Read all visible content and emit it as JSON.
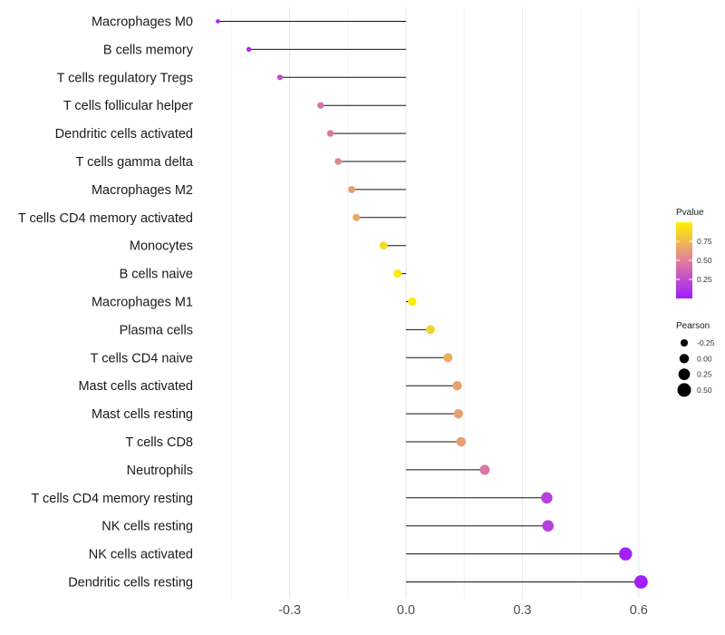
{
  "chart_data": {
    "type": "lollipop",
    "orientation": "horizontal",
    "xlim": [
      -0.45,
      0.62
    ],
    "xticks": [
      -0.3,
      0.0,
      0.3,
      0.6
    ],
    "xtick_labels": [
      "-0.3",
      "0.0",
      "0.3",
      "0.6"
    ],
    "minor_xticks": [
      -0.45,
      -0.15,
      0.15,
      0.45
    ],
    "grid": true,
    "xlabel": "",
    "ylabel": "",
    "points": [
      {
        "category": "Macrophages M0",
        "value": -0.485,
        "pvalue": 0.05
      },
      {
        "category": "B cells memory",
        "value": -0.405,
        "pvalue": 0.1
      },
      {
        "category": "T cells regulatory  Tregs",
        "value": -0.325,
        "pvalue": 0.25
      },
      {
        "category": "T cells follicular helper",
        "value": -0.22,
        "pvalue": 0.42
      },
      {
        "category": "Dendritic cells activated",
        "value": -0.195,
        "pvalue": 0.46
      },
      {
        "category": "T cells gamma delta",
        "value": -0.175,
        "pvalue": 0.52
      },
      {
        "category": "Macrophages M2",
        "value": -0.14,
        "pvalue": 0.62
      },
      {
        "category": "T cells CD4 memory activated",
        "value": -0.128,
        "pvalue": 0.68
      },
      {
        "category": "Monocytes",
        "value": -0.058,
        "pvalue": 0.9
      },
      {
        "category": "B cells naive",
        "value": -0.022,
        "pvalue": 0.97
      },
      {
        "category": "Macrophages M1",
        "value": 0.016,
        "pvalue": 0.98
      },
      {
        "category": "Plasma cells",
        "value": 0.063,
        "pvalue": 0.86
      },
      {
        "category": "T cells CD4 naive",
        "value": 0.108,
        "pvalue": 0.7
      },
      {
        "category": "Mast cells activated",
        "value": 0.132,
        "pvalue": 0.65
      },
      {
        "category": "Mast cells resting",
        "value": 0.135,
        "pvalue": 0.64
      },
      {
        "category": "T cells CD8",
        "value": 0.142,
        "pvalue": 0.63
      },
      {
        "category": "Neutrophils",
        "value": 0.203,
        "pvalue": 0.45
      },
      {
        "category": "T cells CD4 memory resting",
        "value": 0.363,
        "pvalue": 0.18
      },
      {
        "category": "NK cells resting",
        "value": 0.366,
        "pvalue": 0.17
      },
      {
        "category": "NK cells activated",
        "value": 0.566,
        "pvalue": 0.02
      },
      {
        "category": "Dendritic cells resting",
        "value": 0.606,
        "pvalue": 0.01
      }
    ],
    "legend": {
      "color": {
        "title": "Pvalue",
        "range": [
          0,
          1
        ],
        "ticks": [
          0.25,
          0.5,
          0.75
        ],
        "tick_labels": [
          "0.25",
          "0.50",
          "0.75"
        ],
        "low_color": "#a01cff",
        "mid_color": "#e07f9c",
        "high_color": "#fff200"
      },
      "size": {
        "title": "Pearson",
        "values": [
          -0.25,
          0.0,
          0.25,
          0.5
        ],
        "labels": [
          "-0.25",
          "0.00",
          "0.25",
          "0.50"
        ]
      },
      "placement": "right"
    }
  }
}
